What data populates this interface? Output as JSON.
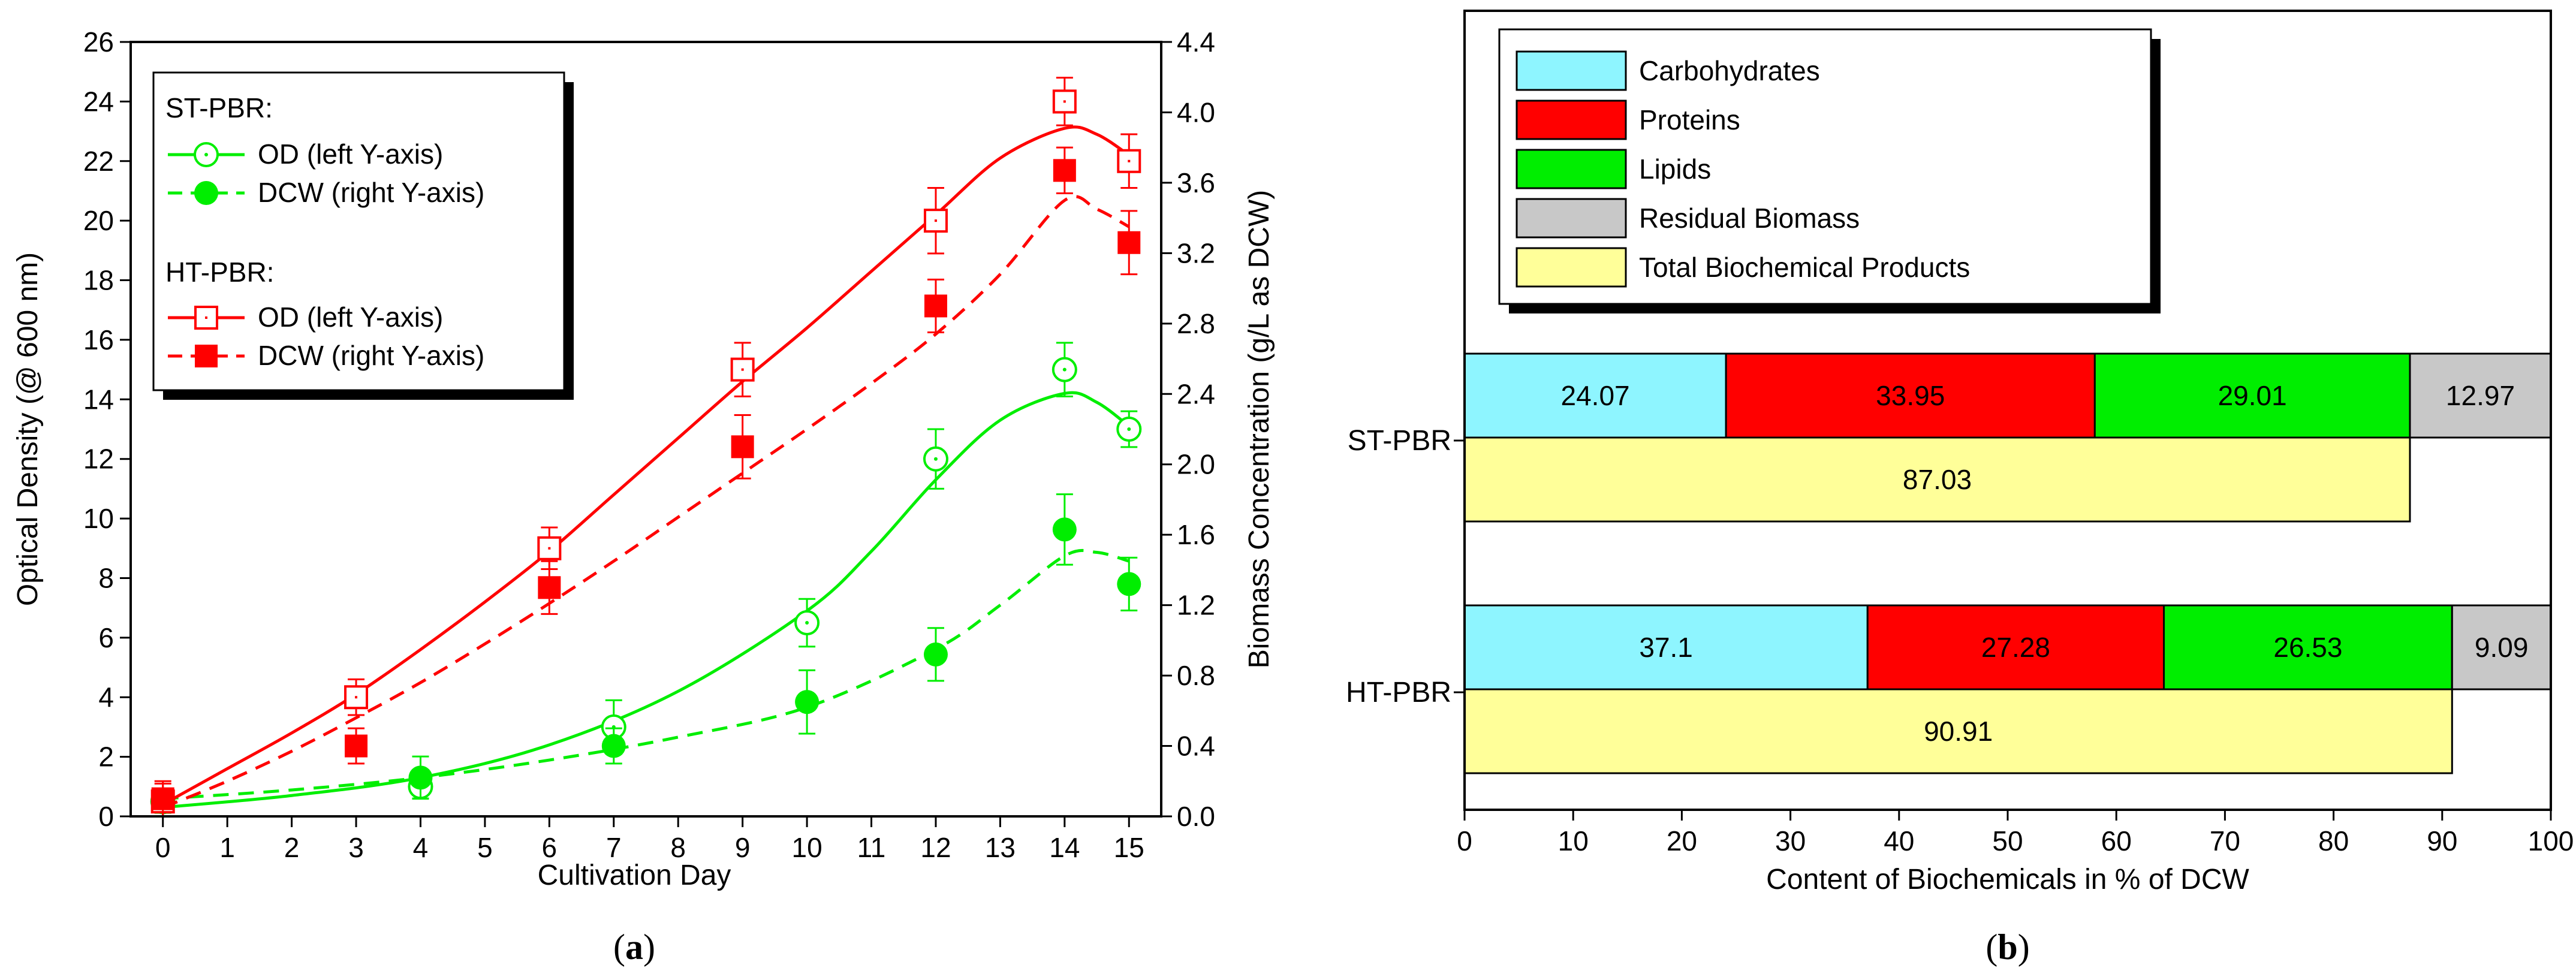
{
  "figure": {
    "panel_a_label_open": "(",
    "panel_a_label_letter": "a",
    "panel_a_label_close": ")",
    "panel_b_label_open": "(",
    "panel_b_label_letter": "b",
    "panel_b_label_close": ")"
  },
  "chart_data": [
    {
      "id": "panel-a",
      "type": "line",
      "xlabel": "Cultivation Day",
      "ylabel": "Optical Density (@ 600 nm)",
      "ylabel_right": "Biomass Concentration (g/L as DCW)",
      "x_ticks": [
        0,
        1,
        2,
        3,
        4,
        5,
        6,
        7,
        8,
        9,
        10,
        11,
        12,
        13,
        14,
        15
      ],
      "xlim": [
        -0.5,
        15.5
      ],
      "ylim_left": [
        0,
        26
      ],
      "y_ticks_left": [
        0,
        2,
        4,
        6,
        8,
        10,
        12,
        14,
        16,
        18,
        20,
        22,
        24,
        26
      ],
      "ylim_right": [
        0,
        4.4
      ],
      "y_ticks_right": [
        "0.0",
        "0.4",
        "0.8",
        "1.2",
        "1.6",
        "2.0",
        "2.4",
        "2.8",
        "3.2",
        "3.6",
        "4.0",
        "4.4"
      ],
      "colors": {
        "st": "#00ee00",
        "ht": "#ff0000"
      },
      "legend": {
        "position": "top-left",
        "group1_title": "ST-PBR:",
        "group2_title": "HT-PBR:",
        "od_label": "OD (left Y-axis)",
        "dcw_label": "DCW (right Y-axis)"
      },
      "series": [
        {
          "name": "ST-PBR OD",
          "axis": "left",
          "marker": "circle-open",
          "dashed": false,
          "color": "#00ee00",
          "x": [
            0,
            4,
            7,
            10,
            12,
            14,
            15
          ],
          "y": [
            0.5,
            1.0,
            3.0,
            6.5,
            12.0,
            15.0,
            13.0
          ],
          "err": [
            0.3,
            0.4,
            0.9,
            0.8,
            1.0,
            0.9,
            0.6
          ],
          "fit_x": [
            0,
            2,
            4,
            6,
            8,
            10,
            11,
            12,
            13,
            14,
            14.5,
            15
          ],
          "fit_y": [
            0.3,
            0.7,
            1.3,
            2.4,
            4.2,
            6.9,
            8.9,
            11.3,
            13.3,
            14.2,
            13.9,
            13.1
          ]
        },
        {
          "name": "ST-PBR DCW",
          "axis": "right",
          "marker": "circle-filled",
          "dashed": true,
          "color": "#00ee00",
          "x": [
            0,
            4,
            7,
            10,
            12,
            14,
            15
          ],
          "y": [
            0.08,
            0.22,
            0.4,
            0.65,
            0.92,
            1.63,
            1.32
          ],
          "err": [
            0.06,
            0.12,
            0.1,
            0.18,
            0.15,
            0.2,
            0.15
          ],
          "fit_x": [
            0,
            2,
            4,
            6,
            8,
            10,
            12,
            13,
            14,
            14.5,
            15
          ],
          "fit_y": [
            0.1,
            0.15,
            0.22,
            0.32,
            0.45,
            0.62,
            0.95,
            1.2,
            1.48,
            1.5,
            1.45
          ]
        },
        {
          "name": "HT-PBR OD",
          "axis": "left",
          "marker": "square-open",
          "dashed": false,
          "color": "#ff0000",
          "x": [
            0,
            3,
            6,
            9,
            12,
            14,
            15
          ],
          "y": [
            0.5,
            4.0,
            9.0,
            15.0,
            20.0,
            24.0,
            22.0
          ],
          "err": [
            0.6,
            0.6,
            0.7,
            0.9,
            1.1,
            0.8,
            0.9
          ],
          "fit_x": [
            0,
            1,
            2,
            3,
            4,
            5,
            6,
            7,
            8,
            9,
            10,
            11,
            12,
            13,
            14,
            14.5,
            15
          ],
          "fit_y": [
            0.4,
            1.6,
            2.8,
            4.1,
            5.6,
            7.2,
            8.9,
            10.8,
            12.7,
            14.6,
            16.4,
            18.3,
            20.2,
            22.1,
            23.1,
            22.9,
            22.2
          ]
        },
        {
          "name": "HT-PBR DCW",
          "axis": "right",
          "marker": "square-filled",
          "dashed": true,
          "color": "#ff0000",
          "x": [
            0,
            3,
            6,
            9,
            12,
            14,
            15
          ],
          "y": [
            0.1,
            0.4,
            1.3,
            2.1,
            2.9,
            3.67,
            3.26
          ],
          "err": [
            0.1,
            0.1,
            0.15,
            0.18,
            0.15,
            0.13,
            0.18
          ],
          "fit_x": [
            0,
            1,
            2,
            3,
            4,
            5,
            6,
            7,
            8,
            9,
            10,
            11,
            12,
            13,
            14,
            14.5,
            15
          ],
          "fit_y": [
            0.05,
            0.2,
            0.37,
            0.56,
            0.76,
            0.98,
            1.21,
            1.45,
            1.7,
            1.95,
            2.2,
            2.46,
            2.74,
            3.08,
            3.5,
            3.45,
            3.35
          ]
        }
      ]
    },
    {
      "id": "panel-b",
      "type": "bar",
      "orientation": "horizontal-stacked",
      "xlabel": "Content of Biochemicals in % of DCW",
      "xlim": [
        0,
        100
      ],
      "x_ticks": [
        0,
        10,
        20,
        30,
        40,
        50,
        60,
        70,
        80,
        90,
        100
      ],
      "categories": [
        "ST-PBR",
        "HT-PBR"
      ],
      "legend": {
        "position": "top-left",
        "items": [
          {
            "label": "Carbohydrates",
            "color": "#8ef5ff"
          },
          {
            "label": "Proteins",
            "color": "#ff0000"
          },
          {
            "label": "Lipids",
            "color": "#00ee00"
          },
          {
            "label": "Residual Biomass",
            "color": "#c8c8c8"
          },
          {
            "label": "Total Biochemical Products",
            "color": "#ffff99"
          }
        ]
      },
      "series": [
        {
          "name": "Carbohydrates",
          "color": "#8ef5ff",
          "values": [
            24.07,
            37.1
          ],
          "labels": [
            "24.07",
            "37.1"
          ]
        },
        {
          "name": "Proteins",
          "color": "#ff0000",
          "values": [
            33.95,
            27.28
          ],
          "labels": [
            "33.95",
            "27.28"
          ]
        },
        {
          "name": "Lipids",
          "color": "#00ee00",
          "values": [
            29.01,
            26.53
          ],
          "labels": [
            "29.01",
            "26.53"
          ]
        },
        {
          "name": "Residual Biomass",
          "color": "#c8c8c8",
          "values": [
            12.97,
            9.09
          ],
          "labels": [
            "12.97",
            "9.09"
          ]
        }
      ],
      "totals": {
        "name": "Total Biochemical Products",
        "color": "#ffff99",
        "values": [
          87.03,
          90.91
        ],
        "labels": [
          "87.03",
          "90.91"
        ]
      }
    }
  ]
}
